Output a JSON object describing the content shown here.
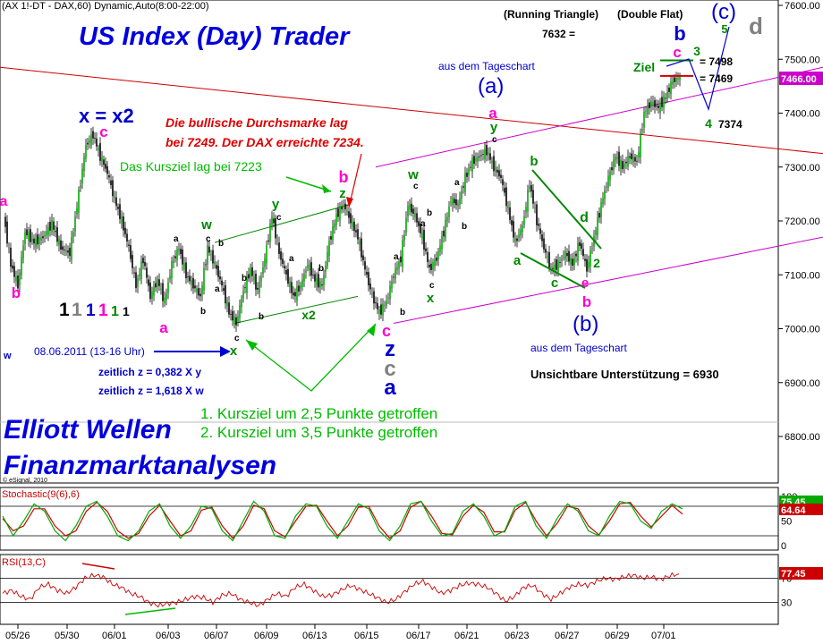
{
  "header": {
    "instrument": "(AX 1!-DT - DAX,60) Dynamic,Auto(8:00-22:00)",
    "running_triangle": "(Running Triangle)",
    "double_flat": "(Double Flat)",
    "running_value": "7632 =",
    "copyright": "© eSignal, 2010"
  },
  "branding": {
    "title": "US Index (Day) Trader",
    "elliott": "Elliott Wellen",
    "finanz": "Finanzmarktanalysen"
  },
  "annotations": {
    "bullish_line1": "Die bullische Durchsmarke lag",
    "bullish_line2": "bei 7249. Der DAX erreichte 7234.",
    "kursziel_7223": "Das Kursziel lag bei 7223",
    "date_note": "08.06.2011 (13-16 Uhr)",
    "zeitlich1": "zeitlich z = 0,382 X y",
    "zeitlich2": "zeitlich z = 1,618 X w",
    "kursziel1": "1. Kursziel um 2,5 Punkte getroffen",
    "kursziel2": "2. Kursziel um 3,5 Punkte getroffen",
    "tageschart_top": "aus dem Tageschart",
    "tageschart_bottom": "aus dem Tageschart",
    "unsichtbare": "Unsichtbare Unterstützung = 6930",
    "ziel": "Ziel",
    "level_7498": "= 7498",
    "level_7469": "= 7469",
    "level_7374": "7374",
    "xx2": "x = x2",
    "wave_a_paren": "(a)",
    "wave_b_paren": "(b)",
    "wave_c_paren": "(c)",
    "w_left": "w",
    "ones_1": "1",
    "ones_2": "1",
    "ones_3": "1",
    "ones_4": "1",
    "ones_5": "1",
    "ones_6": "1"
  },
  "waves": [
    {
      "t": "a",
      "c": "#ff00cc",
      "x": 4,
      "y": 230,
      "s": 16
    },
    {
      "t": "b",
      "c": "#ff00cc",
      "x": 18,
      "y": 333,
      "s": 17
    },
    {
      "t": "c",
      "c": "#ff00cc",
      "x": 116,
      "y": 153,
      "s": 17
    },
    {
      "t": "a",
      "c": "#ff00cc",
      "x": 183,
      "y": 372,
      "s": 17
    },
    {
      "t": "b",
      "c": "#ff00cc",
      "x": 384,
      "y": 204,
      "s": 18
    },
    {
      "t": "c",
      "c": "#ff00cc",
      "x": 432,
      "y": 376,
      "s": 18
    },
    {
      "t": "a",
      "c": "#ff00cc",
      "x": 551,
      "y": 132,
      "s": 17
    },
    {
      "t": "b",
      "c": "#ff00cc",
      "x": 656,
      "y": 343,
      "s": 17
    },
    {
      "t": "e",
      "c": "#ff00cc",
      "x": 654,
      "y": 321,
      "s": 15
    },
    {
      "t": "c",
      "c": "#ff00cc",
      "x": 757,
      "y": 64,
      "s": 17
    },
    {
      "t": "w",
      "c": "#008800",
      "x": 231,
      "y": 256,
      "s": 15
    },
    {
      "t": "x",
      "c": "#008800",
      "x": 261,
      "y": 397,
      "s": 15
    },
    {
      "t": "y",
      "c": "#008800",
      "x": 308,
      "y": 233,
      "s": 15
    },
    {
      "t": "x2",
      "c": "#008800",
      "x": 345,
      "y": 357,
      "s": 14
    },
    {
      "t": "z",
      "c": "#008800",
      "x": 383,
      "y": 221,
      "s": 15
    },
    {
      "t": "w",
      "c": "#008800",
      "x": 462,
      "y": 200,
      "s": 15
    },
    {
      "t": "x",
      "c": "#008800",
      "x": 481,
      "y": 338,
      "s": 15
    },
    {
      "t": "y",
      "c": "#008800",
      "x": 552,
      "y": 147,
      "s": 15
    },
    {
      "t": "a",
      "c": "#008800",
      "x": 578,
      "y": 296,
      "s": 15
    },
    {
      "t": "b",
      "c": "#008800",
      "x": 597,
      "y": 185,
      "s": 15
    },
    {
      "t": "c",
      "c": "#008800",
      "x": 620,
      "y": 321,
      "s": 15
    },
    {
      "t": "d",
      "c": "#008800",
      "x": 653,
      "y": 248,
      "s": 16
    },
    {
      "t": "2",
      "c": "#008800",
      "x": 667,
      "y": 299,
      "s": 14
    },
    {
      "t": "3",
      "c": "#008800",
      "x": 779,
      "y": 62,
      "s": 14
    },
    {
      "t": "4",
      "c": "#008800",
      "x": 792,
      "y": 143,
      "s": 14
    },
    {
      "t": "5",
      "c": "#008800",
      "x": 810,
      "y": 37,
      "s": 13
    },
    {
      "t": "b",
      "c": "#0000cc",
      "x": 760,
      "y": 45,
      "s": 22
    },
    {
      "t": "z",
      "c": "#0000cc",
      "x": 436,
      "y": 398,
      "s": 24
    },
    {
      "t": "a",
      "c": "#0000cc",
      "x": 436,
      "y": 441,
      "s": 24
    },
    {
      "t": "c",
      "c": "#808080",
      "x": 436,
      "y": 420,
      "s": 24
    },
    {
      "t": "d",
      "c": "#808080",
      "x": 845,
      "y": 38,
      "s": 26
    }
  ],
  "minor_labels": [
    {
      "t": "a",
      "x": 194,
      "y": 270
    },
    {
      "t": "b",
      "x": 224,
      "y": 351
    },
    {
      "t": "c",
      "x": 230,
      "y": 270
    },
    {
      "t": "b",
      "x": 244,
      "y": 275
    },
    {
      "t": "a",
      "x": 240,
      "y": 326
    },
    {
      "t": "b",
      "x": 270,
      "y": 314
    },
    {
      "t": "c",
      "x": 262,
      "y": 381
    },
    {
      "t": "b",
      "x": 289,
      "y": 357
    },
    {
      "t": "c",
      "x": 309,
      "y": 246
    },
    {
      "t": "a",
      "x": 323,
      "y": 292
    },
    {
      "t": "b",
      "x": 356,
      "y": 303
    },
    {
      "t": "a",
      "x": 440,
      "y": 290
    },
    {
      "t": "b",
      "x": 447,
      "y": 352
    },
    {
      "t": "c",
      "x": 462,
      "y": 211
    },
    {
      "t": "a",
      "x": 470,
      "y": 253
    },
    {
      "t": "b",
      "x": 477,
      "y": 241
    },
    {
      "t": "c",
      "x": 480,
      "y": 322
    },
    {
      "t": "a",
      "x": 508,
      "y": 207
    },
    {
      "t": "b",
      "x": 516,
      "y": 256
    },
    {
      "t": "c",
      "x": 550,
      "y": 159
    }
  ],
  "chart_data": {
    "type": "candlestick",
    "instrument": "DAX",
    "ylim": [
      6740,
      7620
    ],
    "y_ticks": [
      6800,
      6900,
      7000,
      7100,
      7200,
      7300,
      7400,
      7500,
      7600
    ],
    "x_ticks": [
      "05/26",
      "05/30",
      "06/01",
      "06/03",
      "06/07",
      "06/09",
      "06/13",
      "06/15",
      "06/17",
      "06/21",
      "06/23",
      "06/27",
      "06/29",
      "07/01"
    ],
    "last_price": 7466.0,
    "price_series": [
      [
        6,
        7210
      ],
      [
        14,
        7120
      ],
      [
        22,
        7080
      ],
      [
        30,
        7180
      ],
      [
        40,
        7160
      ],
      [
        50,
        7170
      ],
      [
        60,
        7195
      ],
      [
        70,
        7150
      ],
      [
        80,
        7140
      ],
      [
        90,
        7250
      ],
      [
        98,
        7340
      ],
      [
        106,
        7360
      ],
      [
        114,
        7320
      ],
      [
        122,
        7290
      ],
      [
        130,
        7240
      ],
      [
        138,
        7200
      ],
      [
        146,
        7150
      ],
      [
        154,
        7080
      ],
      [
        162,
        7130
      ],
      [
        170,
        7060
      ],
      [
        178,
        7090
      ],
      [
        186,
        7050
      ],
      [
        194,
        7120
      ],
      [
        202,
        7150
      ],
      [
        210,
        7100
      ],
      [
        218,
        7080
      ],
      [
        226,
        7060
      ],
      [
        234,
        7150
      ],
      [
        242,
        7120
      ],
      [
        250,
        7080
      ],
      [
        258,
        7030
      ],
      [
        266,
        7010
      ],
      [
        274,
        7070
      ],
      [
        282,
        7110
      ],
      [
        290,
        7070
      ],
      [
        298,
        7130
      ],
      [
        306,
        7210
      ],
      [
        314,
        7140
      ],
      [
        322,
        7100
      ],
      [
        330,
        7060
      ],
      [
        338,
        7080
      ],
      [
        346,
        7120
      ],
      [
        354,
        7090
      ],
      [
        362,
        7080
      ],
      [
        370,
        7160
      ],
      [
        378,
        7210
      ],
      [
        386,
        7230
      ],
      [
        394,
        7200
      ],
      [
        402,
        7170
      ],
      [
        410,
        7110
      ],
      [
        418,
        7060
      ],
      [
        426,
        7030
      ],
      [
        434,
        7050
      ],
      [
        442,
        7100
      ],
      [
        450,
        7130
      ],
      [
        458,
        7230
      ],
      [
        466,
        7210
      ],
      [
        474,
        7170
      ],
      [
        482,
        7110
      ],
      [
        490,
        7130
      ],
      [
        498,
        7180
      ],
      [
        506,
        7240
      ],
      [
        514,
        7230
      ],
      [
        522,
        7280
      ],
      [
        530,
        7310
      ],
      [
        538,
        7320
      ],
      [
        546,
        7330
      ],
      [
        554,
        7300
      ],
      [
        562,
        7280
      ],
      [
        570,
        7220
      ],
      [
        578,
        7160
      ],
      [
        586,
        7190
      ],
      [
        594,
        7270
      ],
      [
        602,
        7200
      ],
      [
        610,
        7150
      ],
      [
        618,
        7110
      ],
      [
        626,
        7120
      ],
      [
        634,
        7140
      ],
      [
        642,
        7120
      ],
      [
        650,
        7160
      ],
      [
        658,
        7110
      ],
      [
        666,
        7170
      ],
      [
        674,
        7230
      ],
      [
        682,
        7280
      ],
      [
        690,
        7320
      ],
      [
        698,
        7300
      ],
      [
        706,
        7320
      ],
      [
        714,
        7310
      ],
      [
        722,
        7400
      ],
      [
        730,
        7420
      ],
      [
        738,
        7410
      ],
      [
        746,
        7430
      ],
      [
        754,
        7460
      ],
      [
        762,
        7466
      ]
    ],
    "channel_lines": [
      {
        "name": "red_resistance",
        "color": "#cc0000",
        "p1": [
          0,
          7485
        ],
        "p2": [
          920,
          7325
        ]
      },
      {
        "name": "magenta_upper",
        "color": "#cc00cc",
        "p1": [
          420,
          7300
        ],
        "p2": [
          920,
          7485
        ]
      },
      {
        "name": "magenta_lower",
        "color": "#cc00cc",
        "p1": [
          440,
          7010
        ],
        "p2": [
          920,
          7170
        ]
      },
      {
        "name": "green_upper_wxy",
        "color": "#008800",
        "p1": [
          240,
          7160
        ],
        "p2": [
          390,
          7230
        ]
      },
      {
        "name": "green_lower_wxy",
        "color": "#008800",
        "p1": [
          262,
          7010
        ],
        "p2": [
          400,
          7060
        ]
      }
    ],
    "levels": [
      {
        "value": 7498,
        "label": "= 7498",
        "color": "#008800"
      },
      {
        "value": 7469,
        "label": "= 7469",
        "color": "#cc0000"
      },
      {
        "value": 7374,
        "label": "7374",
        "color": "#000000"
      }
    ],
    "stochastic": {
      "label": "Stochastic(9(6),6)",
      "ylim": [
        0,
        100
      ],
      "ticks": [
        50,
        100
      ],
      "value_k": 75.45,
      "value_d": 64.64,
      "bands": [
        20,
        80
      ],
      "k": [
        60,
        20,
        50,
        85,
        70,
        30,
        10,
        40,
        80,
        90,
        60,
        20,
        10,
        30,
        70,
        85,
        40,
        15,
        40,
        80,
        75,
        30,
        10,
        50,
        90,
        70,
        20,
        15,
        60,
        85,
        80,
        40,
        15,
        50,
        85,
        75,
        30,
        10,
        40,
        85,
        90,
        50,
        20,
        25,
        70,
        85,
        60,
        20,
        30,
        80,
        90,
        40,
        15,
        55,
        85,
        70,
        30,
        20,
        60,
        90,
        85,
        50,
        35,
        70,
        85,
        75
      ],
      "d": [
        55,
        30,
        40,
        75,
        75,
        40,
        20,
        30,
        70,
        88,
        70,
        30,
        15,
        25,
        60,
        82,
        50,
        20,
        30,
        72,
        78,
        40,
        15,
        40,
        82,
        75,
        30,
        18,
        50,
        80,
        82,
        50,
        20,
        40,
        78,
        80,
        40,
        15,
        30,
        78,
        90,
        60,
        25,
        22,
        60,
        82,
        68,
        28,
        28,
        72,
        88,
        50,
        20,
        45,
        80,
        75,
        40,
        22,
        50,
        85,
        88,
        60,
        38,
        60,
        82,
        64
      ]
    },
    "rsi": {
      "label": "RSI(13,C)",
      "ylim": [
        0,
        100
      ],
      "ticks": [
        30,
        70
      ],
      "value": 77.45,
      "bands": [
        30,
        70
      ],
      "values": [
        45,
        50,
        40,
        35,
        55,
        60,
        50,
        45,
        55,
        70,
        75,
        72,
        60,
        55,
        45,
        40,
        30,
        25,
        28,
        30,
        35,
        40,
        38,
        30,
        42,
        45,
        35,
        30,
        25,
        35,
        45,
        40,
        55,
        60,
        50,
        40,
        42,
        50,
        58,
        52,
        45,
        38,
        30,
        35,
        48,
        60,
        65,
        55,
        45,
        50,
        58,
        62,
        60,
        55,
        45,
        32,
        40,
        55,
        58,
        45,
        35,
        45,
        55,
        60,
        58,
        65,
        70,
        68,
        72,
        75,
        70,
        72,
        68,
        74,
        77
      ]
    }
  },
  "colors": {
    "title_blue": "#0000dd",
    "annot_red": "#dd0000",
    "annot_green": "#00bb00",
    "wave_magenta": "#ff00cc",
    "wave_green": "#008800",
    "wave_blue": "#0000cc",
    "last_price_bg": "#cc00cc",
    "stoch_bg": "#cc0000",
    "stoch_green_bg": "#00aa00",
    "rsi_bg": "#cc0000"
  },
  "badges": {
    "last_price": "7466.00",
    "stoch_k": "75.45",
    "stoch_d": "64.64",
    "rsi_val": "77.45"
  }
}
